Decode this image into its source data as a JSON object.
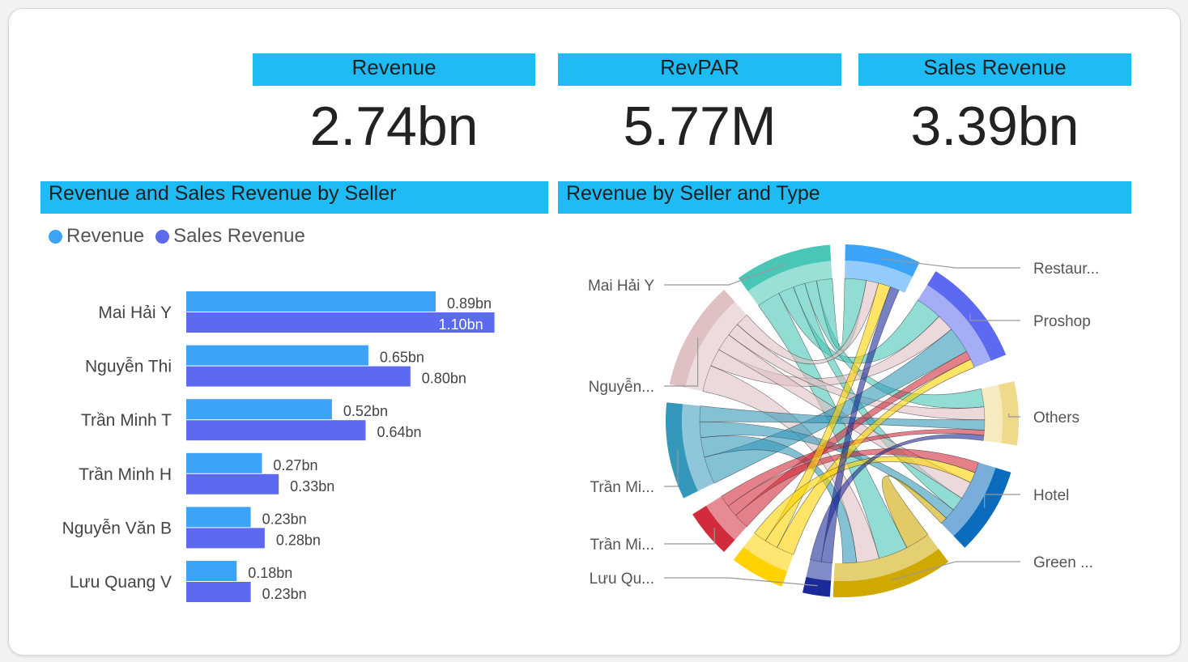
{
  "kpis": [
    {
      "title": "Revenue",
      "value": "2.74bn"
    },
    {
      "title": "RevPAR",
      "value": "5.77M"
    },
    {
      "title": "Sales Revenue",
      "value": "3.39bn"
    }
  ],
  "bar_section": {
    "title": "Revenue and Sales Revenue by Seller"
  },
  "chord_section": {
    "title": "Revenue by Seller and Type"
  },
  "colors": {
    "revenue": "#3ba3f8",
    "sales_revenue": "#5b6af0",
    "header": "#1fbbf5"
  },
  "chart_data": [
    {
      "type": "bar",
      "orientation": "horizontal",
      "categories": [
        "Mai Hải Y",
        "Nguyễn Thi",
        "Trần Minh T",
        "Trần Minh H",
        "Nguyễn Văn B",
        "Lưu Quang V"
      ],
      "series": [
        {
          "name": "Revenue",
          "values": [
            0.89,
            0.65,
            0.52,
            0.27,
            0.23,
            0.18
          ],
          "labels": [
            "0.89bn",
            "0.65bn",
            "0.52bn",
            "0.27bn",
            "0.23bn",
            "0.18bn"
          ]
        },
        {
          "name": "Sales Revenue",
          "values": [
            1.1,
            0.8,
            0.64,
            0.33,
            0.28,
            0.23
          ],
          "labels": [
            "1.10bn",
            "0.80bn",
            "0.64bn",
            "0.33bn",
            "0.28bn",
            "0.23bn"
          ]
        }
      ],
      "legend": "top-left",
      "xaxis_visible": false
    },
    {
      "type": "chord",
      "sellers": [
        {
          "label": "Mai Hải Y",
          "color": "#49c6b6"
        },
        {
          "label": "Nguyễn...",
          "color": "#dfc0c3"
        },
        {
          "label": "Trần Mi...",
          "color": "#3398b9"
        },
        {
          "label": "Trần Mi...",
          "color": "#d22c3c"
        },
        {
          "label": "Lưu Qu...",
          "color": "#1a2b99"
        }
      ],
      "types": [
        {
          "label": "Restaur...",
          "color": "#3ba3f8"
        },
        {
          "label": "Proshop",
          "color": "#5b6af0"
        },
        {
          "label": "Others",
          "color": "#efd98b"
        },
        {
          "label": "Hotel",
          "color": "#0b6bbd"
        },
        {
          "label": "Green ...",
          "color": "#cfa800"
        }
      ],
      "extra_color": "#ffd200"
    }
  ]
}
